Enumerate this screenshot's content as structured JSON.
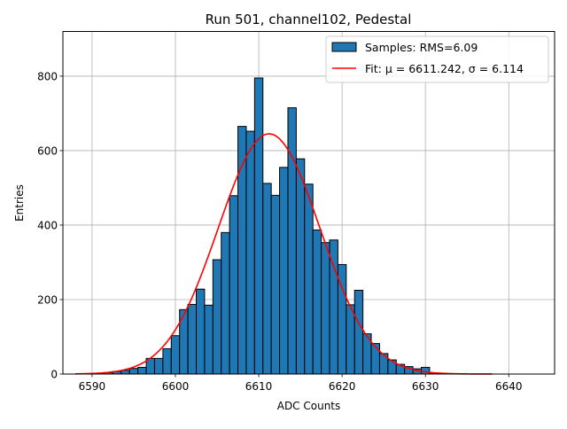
{
  "chart_data": {
    "type": "bar",
    "title": "Run 501, channel102, Pedestal",
    "xlabel": "ADC Counts",
    "ylabel": "Entries",
    "xlim": [
      6586.5,
      6645.5
    ],
    "ylim": [
      0,
      920
    ],
    "xticks": [
      6590,
      6600,
      6610,
      6620,
      6630,
      6640
    ],
    "yticks": [
      0,
      200,
      400,
      600,
      800
    ],
    "grid": true,
    "legend_position": "top-right",
    "histogram": {
      "name": "Samples: RMS=6.09",
      "bin_width": 1,
      "x": [
        6591,
        6592,
        6593,
        6594,
        6595,
        6596,
        6597,
        6598,
        6599,
        6600,
        6601,
        6602,
        6603,
        6604,
        6605,
        6606,
        6607,
        6608,
        6609,
        6610,
        6611,
        6612,
        6613,
        6614,
        6615,
        6616,
        6617,
        6618,
        6619,
        6620,
        6621,
        6622,
        6623,
        6624,
        6625,
        6626,
        6627,
        6628,
        6629,
        6630,
        6631
      ],
      "values": [
        2,
        4,
        7,
        10,
        15,
        18,
        42,
        42,
        68,
        103,
        173,
        187,
        228,
        185,
        307,
        380,
        479,
        665,
        652,
        795,
        512,
        480,
        555,
        715,
        578,
        510,
        387,
        353,
        360,
        294,
        186,
        225,
        108,
        82,
        55,
        38,
        26,
        20,
        14,
        18,
        3
      ],
      "fill": "#1f77b4",
      "edge": "#000000"
    },
    "fit": {
      "name": "Fit: μ = 6611.242, σ = 6.114",
      "mu": 6611.242,
      "sigma": 6.114,
      "amplitude": 645,
      "x_range": [
        6588,
        6638
      ],
      "color": "#ff0000"
    }
  }
}
